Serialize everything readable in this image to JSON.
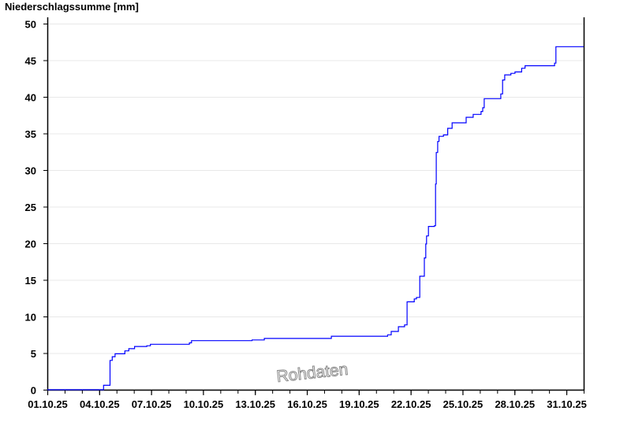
{
  "chart_data": {
    "type": "line",
    "step": true,
    "title": "Niederschlagssumme [mm]",
    "xlabel": "",
    "ylabel": "",
    "ylim": [
      0,
      50
    ],
    "yticks": [
      0,
      5,
      10,
      15,
      20,
      25,
      30,
      35,
      40,
      45,
      50
    ],
    "xlim": [
      "2025-10-01T00:00",
      "2025-11-01T00:00"
    ],
    "xtick_labels": [
      "01.10.25",
      "04.10.25",
      "07.10.25",
      "10.10.25",
      "13.10.25",
      "16.10.25",
      "19.10.25",
      "22.10.25",
      "25.10.25",
      "28.10.25",
      "31.10.25"
    ],
    "xtick_dates": [
      "2025-10-01",
      "2025-10-04",
      "2025-10-07",
      "2025-10-10",
      "2025-10-13",
      "2025-10-16",
      "2025-10-19",
      "2025-10-22",
      "2025-10-25",
      "2025-10-28",
      "2025-10-31"
    ],
    "grid": true,
    "line_color": "#0000ff",
    "watermark": "Rohdaten",
    "series": [
      {
        "points": [
          [
            "2025-10-01T00:00",
            0
          ],
          [
            "2025-10-04T06:00",
            0.6
          ],
          [
            "2025-10-04T15:00",
            4.0
          ],
          [
            "2025-10-04T18:00",
            4.5
          ],
          [
            "2025-10-04T22:00",
            4.9
          ],
          [
            "2025-10-05T11:30",
            5.3
          ],
          [
            "2025-10-05T17:00",
            5.6
          ],
          [
            "2025-10-06T01:00",
            5.9
          ],
          [
            "2025-10-06T18:00",
            6.0
          ],
          [
            "2025-10-06T23:00",
            6.2
          ],
          [
            "2025-10-09T05:00",
            6.4
          ],
          [
            "2025-10-09T08:00",
            6.7
          ],
          [
            "2025-10-12T20:00",
            6.8
          ],
          [
            "2025-10-13T13:00",
            7.0
          ],
          [
            "2025-10-17T10:00",
            7.3
          ],
          [
            "2025-10-20T16:00",
            7.5
          ],
          [
            "2025-10-20T21:00",
            7.96
          ],
          [
            "2025-10-21T07:00",
            8.6
          ],
          [
            "2025-10-21T15:30",
            8.85
          ],
          [
            "2025-10-21T19:00",
            12.0
          ],
          [
            "2025-10-22T05:00",
            12.4
          ],
          [
            "2025-10-22T08:00",
            12.6
          ],
          [
            "2025-10-22T12:40",
            15.5
          ],
          [
            "2025-10-22T19:00",
            18.0
          ],
          [
            "2025-10-22T21:00",
            19.9
          ],
          [
            "2025-10-22T22:00",
            21.0
          ],
          [
            "2025-10-23T00:40",
            22.3
          ],
          [
            "2025-10-23T09:00",
            22.4
          ],
          [
            "2025-10-23T10:30",
            28.1
          ],
          [
            "2025-10-23T11:30",
            32.4
          ],
          [
            "2025-10-23T13:30",
            33.9
          ],
          [
            "2025-10-23T15:20",
            34.6
          ],
          [
            "2025-10-23T21:30",
            34.8
          ],
          [
            "2025-10-24T03:20",
            35.7
          ],
          [
            "2025-10-24T09:30",
            36.45
          ],
          [
            "2025-10-25T05:00",
            37.2
          ],
          [
            "2025-10-25T14:40",
            37.6
          ],
          [
            "2025-10-26T01:40",
            38.0
          ],
          [
            "2025-10-26T04:00",
            38.5
          ],
          [
            "2025-10-26T06:00",
            39.75
          ],
          [
            "2025-10-27T05:00",
            40.4
          ],
          [
            "2025-10-27T07:30",
            42.3
          ],
          [
            "2025-10-27T10:30",
            43.0
          ],
          [
            "2025-10-27T19:00",
            43.2
          ],
          [
            "2025-10-28T00:45",
            43.4
          ],
          [
            "2025-10-28T10:00",
            43.9
          ],
          [
            "2025-10-28T14:40",
            44.25
          ],
          [
            "2025-10-30T07:40",
            44.6
          ],
          [
            "2025-10-30T09:30",
            46.85
          ],
          [
            "2025-11-01T00:00",
            46.85
          ]
        ]
      }
    ]
  }
}
